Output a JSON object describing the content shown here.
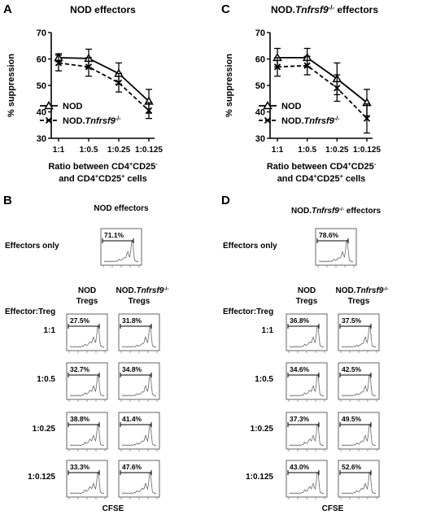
{
  "panels_top": [
    {
      "letter": "A",
      "title": "NOD effectors",
      "chart_data": {
        "type": "line",
        "categories": [
          "1:1",
          "1:0.5",
          "1:0.25",
          "1:0.125"
        ],
        "ylabel": "% suppression",
        "ylim": [
          30,
          70
        ],
        "yticks": [
          "30",
          "40",
          "50",
          "60",
          "70"
        ],
        "xlabel_line1": "Ratio between CD4",
        "xlabel_line1_sup1": "+",
        "xlabel_line1_mid": "CD25",
        "xlabel_line1_sup2": "-",
        "xlabel_line2": "and CD4",
        "xlabel_line2_sup1": "+",
        "xlabel_line2_mid": "CD25",
        "xlabel_line2_sup2": "+",
        "xlabel_line2_end": " cells",
        "legend_position": "bottom-left",
        "series": [
          {
            "name": "NOD",
            "values": [
              60.5,
              60.2,
              54.5,
              44.0
            ],
            "err": [
              1.5,
              3.5,
              4.0,
              4.5
            ],
            "marker": "triangle",
            "dash": "solid"
          },
          {
            "name_prefix": "NOD.",
            "name_italic": "Tnfrsf9",
            "name_sup": "-/-",
            "values": [
              58.5,
              57.0,
              51.0,
              40.5
            ],
            "err": [
              3.0,
              3.5,
              3.5,
              3.0
            ],
            "marker": "x",
            "dash": "dashed"
          }
        ]
      }
    },
    {
      "letter": "C",
      "title_prefix": "NOD.",
      "title_italic": "Tnfrsf9",
      "title_sup": "-/-",
      "title_suffix": " effectors",
      "chart_data": {
        "type": "line",
        "categories": [
          "1:1",
          "1:0.5",
          "1:0.25",
          "1:0.125"
        ],
        "ylabel": "% suppression",
        "ylim": [
          30,
          70
        ],
        "yticks": [
          "30",
          "40",
          "50",
          "60",
          "70"
        ],
        "xlabel_line1": "Ratio between CD4",
        "xlabel_line1_sup1": "+",
        "xlabel_line1_mid": "CD25",
        "xlabel_line1_sup2": "-",
        "xlabel_line2": "and CD4",
        "xlabel_line2_sup1": "+",
        "xlabel_line2_mid": "CD25",
        "xlabel_line2_sup2": "+",
        "xlabel_line2_end": " cells",
        "legend_position": "bottom-left",
        "series": [
          {
            "name": "NOD",
            "values": [
              60.5,
              60.5,
              52.5,
              43.5
            ],
            "err": [
              3.5,
              3.5,
              6.0,
              5.0
            ],
            "marker": "triangle",
            "dash": "solid"
          },
          {
            "name_prefix": "NOD.",
            "name_italic": "Tnfrsf9",
            "name_sup": "-/-",
            "values": [
              57.0,
              57.5,
              49.0,
              37.5
            ],
            "err": [
              3.5,
              3.5,
              5.0,
              5.5
            ],
            "marker": "x",
            "dash": "dashed"
          }
        ]
      }
    }
  ],
  "panels_bottom": [
    {
      "letter": "B",
      "title": "NOD effectors",
      "effectors_only_label": "Effectors only",
      "effectors_only_pct": "71.1%",
      "col1": [
        "NOD",
        "Tregs"
      ],
      "col2_prefix": "NOD.",
      "col2_italic": "Tnfrsf9",
      "col2_sup": "-/-",
      "col2_line2": "Tregs",
      "ratio_header": "Effector:Treg",
      "rows": [
        {
          "ratio": "1:1",
          "pct1": "27.5%",
          "pct2": "31.8%"
        },
        {
          "ratio": "1:0.5",
          "pct1": "32.7%",
          "pct2": "34.8%"
        },
        {
          "ratio": "1:0.25",
          "pct1": "38.8%",
          "pct2": "41.4%"
        },
        {
          "ratio": "1:0.125",
          "pct1": "33.3%",
          "pct2": "47.6%"
        }
      ],
      "xaxis_label": "CFSE"
    },
    {
      "letter": "D",
      "title_prefix": "NOD.",
      "title_italic": "Tnfrsf9",
      "title_sup": "-/-",
      "title_suffix": " effectors",
      "effectors_only_label": "Effectors only",
      "effectors_only_pct": "78.6%",
      "col1": [
        "NOD",
        "Tregs"
      ],
      "col2_prefix": "NOD.",
      "col2_italic": "Tnfrsf9",
      "col2_sup": "-/-",
      "col2_line2": "Tregs",
      "ratio_header": "Effector:Treg",
      "rows": [
        {
          "ratio": "1:1",
          "pct1": "36.8%",
          "pct2": "37.5%"
        },
        {
          "ratio": "1:0.5",
          "pct1": "34.6%",
          "pct2": "42.5%"
        },
        {
          "ratio": "1:0.25",
          "pct1": "37.3%",
          "pct2": "49.5%"
        },
        {
          "ratio": "1:0.125",
          "pct1": "43.0%",
          "pct2": "52.6%"
        }
      ],
      "xaxis_label": "CFSE"
    }
  ]
}
